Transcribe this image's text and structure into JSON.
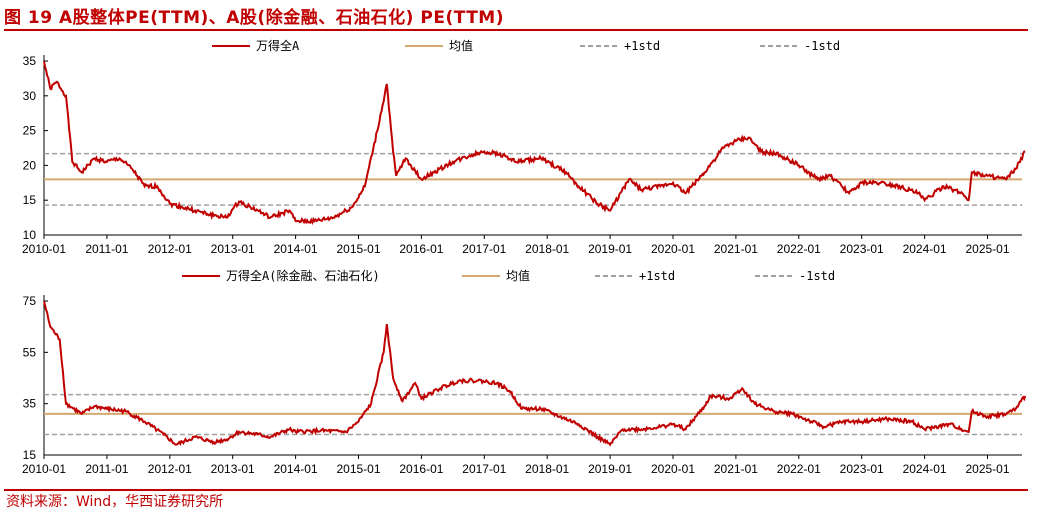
{
  "title": "图 19 A股整体PE(TTM)、A股(除金融、石油石化) PE(TTM)",
  "source": "资料来源：Wind，华西证券研究所",
  "colors": {
    "series": "#c00000",
    "mean": "#d4a870",
    "std": "#a0a0a0"
  },
  "chart_data": [
    {
      "type": "line",
      "title": "A股整体PE(TTM)",
      "ylim": [
        10,
        35
      ],
      "yticks": [
        10,
        15,
        20,
        25,
        30,
        35
      ],
      "xticks": [
        "2010-01",
        "2011-01",
        "2012-01",
        "2013-01",
        "2014-01",
        "2015-01",
        "2016-01",
        "2017-01",
        "2018-01",
        "2019-01",
        "2020-01",
        "2021-01",
        "2022-01",
        "2023-01",
        "2024-01",
        "2025-01"
      ],
      "legend": {
        "series": "万得全A",
        "mean": "均值",
        "plus": "+1std",
        "minus": "-1std"
      },
      "mean": 18,
      "plus_std": 21.7,
      "minus_std": 14.3,
      "points": [
        [
          2010.0,
          35
        ],
        [
          2010.1,
          31
        ],
        [
          2010.2,
          32
        ],
        [
          2010.35,
          30
        ],
        [
          2010.45,
          20.5
        ],
        [
          2010.6,
          19
        ],
        [
          2010.8,
          21
        ],
        [
          2011.0,
          20.5
        ],
        [
          2011.2,
          21
        ],
        [
          2011.4,
          19.5
        ],
        [
          2011.6,
          17
        ],
        [
          2011.8,
          17
        ],
        [
          2012.0,
          14.5
        ],
        [
          2012.2,
          14
        ],
        [
          2012.4,
          13.5
        ],
        [
          2012.6,
          13
        ],
        [
          2012.9,
          12.5
        ],
        [
          2013.1,
          14.8
        ],
        [
          2013.4,
          13.5
        ],
        [
          2013.6,
          12.5
        ],
        [
          2013.9,
          13.5
        ],
        [
          2014.0,
          12
        ],
        [
          2014.3,
          12
        ],
        [
          2014.6,
          12.5
        ],
        [
          2014.9,
          14
        ],
        [
          2015.1,
          17
        ],
        [
          2015.3,
          25
        ],
        [
          2015.45,
          31.7
        ],
        [
          2015.55,
          22
        ],
        [
          2015.6,
          18.5
        ],
        [
          2015.75,
          21
        ],
        [
          2016.0,
          18
        ],
        [
          2016.2,
          19
        ],
        [
          2016.5,
          20.5
        ],
        [
          2016.8,
          21.5
        ],
        [
          2017.0,
          22
        ],
        [
          2017.3,
          21.5
        ],
        [
          2017.5,
          20.5
        ],
        [
          2017.9,
          21
        ],
        [
          2018.0,
          20.5
        ],
        [
          2018.3,
          19
        ],
        [
          2018.5,
          17
        ],
        [
          2018.8,
          14.5
        ],
        [
          2019.0,
          13.5
        ],
        [
          2019.3,
          18
        ],
        [
          2019.5,
          16.5
        ],
        [
          2019.8,
          17
        ],
        [
          2020.0,
          17.5
        ],
        [
          2020.2,
          16
        ],
        [
          2020.5,
          19
        ],
        [
          2020.8,
          22.5
        ],
        [
          2021.0,
          23.5
        ],
        [
          2021.2,
          24
        ],
        [
          2021.4,
          22
        ],
        [
          2021.7,
          21.5
        ],
        [
          2022.0,
          20
        ],
        [
          2022.3,
          18
        ],
        [
          2022.5,
          18.5
        ],
        [
          2022.8,
          16
        ],
        [
          2023.0,
          17.5
        ],
        [
          2023.3,
          17.5
        ],
        [
          2023.6,
          17
        ],
        [
          2023.9,
          16
        ],
        [
          2024.0,
          15
        ],
        [
          2024.3,
          17
        ],
        [
          2024.6,
          16
        ],
        [
          2024.7,
          15
        ],
        [
          2024.75,
          19
        ],
        [
          2025.0,
          18.5
        ],
        [
          2025.3,
          18
        ],
        [
          2025.45,
          19.5
        ],
        [
          2025.6,
          22
        ]
      ]
    },
    {
      "type": "line",
      "title": "A股(除金融、石油石化) PE(TTM)",
      "ylim": [
        15,
        75
      ],
      "yticks": [
        15,
        35,
        55,
        75
      ],
      "xticks": [
        "2010-01",
        "2011-01",
        "2012-01",
        "2013-01",
        "2014-01",
        "2015-01",
        "2016-01",
        "2017-01",
        "2018-01",
        "2019-01",
        "2020-01",
        "2021-01",
        "2022-01",
        "2023-01",
        "2024-01",
        "2025-01"
      ],
      "legend": {
        "series": "万得全A(除金融、石油石化)",
        "mean": "均值",
        "plus": "+1std",
        "minus": "-1std"
      },
      "mean": 31,
      "plus_std": 38.5,
      "minus_std": 23,
      "points": [
        [
          2010.0,
          75
        ],
        [
          2010.1,
          65
        ],
        [
          2010.25,
          60
        ],
        [
          2010.35,
          35
        ],
        [
          2010.6,
          31
        ],
        [
          2010.8,
          34
        ],
        [
          2011.0,
          33
        ],
        [
          2011.3,
          32
        ],
        [
          2011.6,
          28
        ],
        [
          2011.9,
          23
        ],
        [
          2012.1,
          19
        ],
        [
          2012.4,
          22
        ],
        [
          2012.7,
          20
        ],
        [
          2012.9,
          21
        ],
        [
          2013.1,
          24
        ],
        [
          2013.4,
          23
        ],
        [
          2013.6,
          22
        ],
        [
          2013.9,
          25
        ],
        [
          2014.0,
          24
        ],
        [
          2014.4,
          24.5
        ],
        [
          2014.8,
          24
        ],
        [
          2015.0,
          28
        ],
        [
          2015.2,
          35
        ],
        [
          2015.4,
          55
        ],
        [
          2015.45,
          66
        ],
        [
          2015.55,
          45
        ],
        [
          2015.7,
          36
        ],
        [
          2015.9,
          43
        ],
        [
          2016.0,
          37
        ],
        [
          2016.3,
          41
        ],
        [
          2016.6,
          44
        ],
        [
          2016.9,
          44
        ],
        [
          2017.2,
          43
        ],
        [
          2017.4,
          40
        ],
        [
          2017.6,
          33
        ],
        [
          2017.9,
          33
        ],
        [
          2018.2,
          30
        ],
        [
          2018.5,
          27
        ],
        [
          2018.8,
          22
        ],
        [
          2019.0,
          19
        ],
        [
          2019.2,
          25
        ],
        [
          2019.5,
          25
        ],
        [
          2019.8,
          26
        ],
        [
          2020.0,
          27
        ],
        [
          2020.2,
          25
        ],
        [
          2020.5,
          34
        ],
        [
          2020.6,
          38
        ],
        [
          2020.9,
          37
        ],
        [
          2021.1,
          41
        ],
        [
          2021.3,
          35
        ],
        [
          2021.6,
          32
        ],
        [
          2021.9,
          31
        ],
        [
          2022.2,
          28
        ],
        [
          2022.4,
          26
        ],
        [
          2022.7,
          28
        ],
        [
          2023.0,
          28
        ],
        [
          2023.4,
          29
        ],
        [
          2023.8,
          28
        ],
        [
          2024.0,
          25
        ],
        [
          2024.4,
          27
        ],
        [
          2024.7,
          24
        ],
        [
          2024.75,
          32
        ],
        [
          2025.0,
          30
        ],
        [
          2025.3,
          31
        ],
        [
          2025.45,
          33
        ],
        [
          2025.6,
          38
        ]
      ]
    }
  ]
}
